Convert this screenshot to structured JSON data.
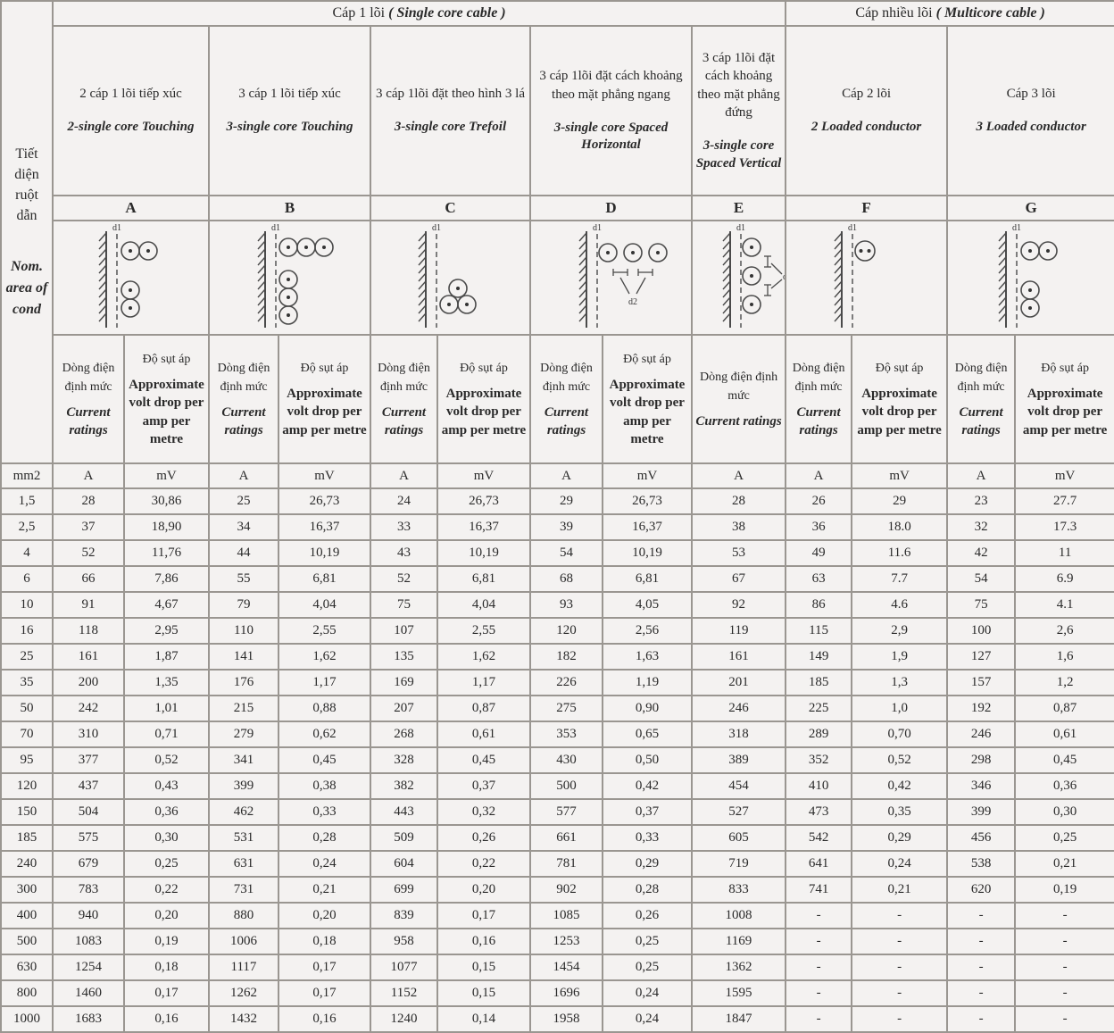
{
  "colors": {
    "cell_background": "#f4f2f1",
    "border": "#9a9691",
    "text": "#2a2a2a",
    "diagram_stroke": "#4a4a4a"
  },
  "table": {
    "corner": {
      "vi": "Tiết diện ruột dẫn",
      "en": "Nom. area of cond"
    },
    "sections": [
      {
        "title_vi": "Cáp 1 lõi",
        "title_en": "( Single core cable )",
        "span": 9
      },
      {
        "title_vi": "Cáp nhiều lõi",
        "title_en": "( Multicore cable )",
        "span": 4
      }
    ],
    "groups": [
      {
        "letter": "A",
        "desc_vi": "2 cáp 1 lõi tiếp xúc",
        "desc_en": "2-single core Touching",
        "cols": 2,
        "diagram": "2-single-touching"
      },
      {
        "letter": "B",
        "desc_vi": "3 cáp 1 lõi tiếp xúc",
        "desc_en": "3-single core Touching",
        "cols": 2,
        "diagram": "3-single-touching"
      },
      {
        "letter": "C",
        "desc_vi": "3 cáp 1lõi đặt theo hình 3 lá",
        "desc_en": "3-single core Trefoil",
        "cols": 2,
        "diagram": "trefoil"
      },
      {
        "letter": "D",
        "desc_vi": "3 cáp 1lõi đặt cách khoảng theo mặt phẳng ngang",
        "desc_en": "3-single core Spaced Horizontal",
        "cols": 2,
        "diagram": "spaced-horizontal"
      },
      {
        "letter": "E",
        "desc_vi": "3 cáp 1lõi đặt cách khoảng theo mặt phẳng đứng",
        "desc_en": "3-single core Spaced Vertical",
        "cols": 1,
        "diagram": "spaced-vertical"
      },
      {
        "letter": "F",
        "desc_vi": "Cáp 2 lõi",
        "desc_en": "2 Loaded conductor",
        "cols": 2,
        "diagram": "2-core-cable"
      },
      {
        "letter": "G",
        "desc_vi": "Cáp 3 lõi",
        "desc_en": "3 Loaded conductor",
        "cols": 2,
        "diagram": "3-core-cable"
      }
    ],
    "subheader": {
      "current_vi": "Dòng điện định mức",
      "current_en": "Current ratings",
      "volt_vi": "Độ sụt áp",
      "volt_en": "Approximate volt drop per amp per metre"
    },
    "units": {
      "size": "mm2",
      "current": "A",
      "volt": "mV"
    },
    "diagram_labels": {
      "d1": "d1",
      "d2": "d2"
    },
    "rows": [
      {
        "size": "1,5",
        "values": [
          "28",
          "30,86",
          "25",
          "26,73",
          "24",
          "26,73",
          "29",
          "26,73",
          "28",
          "26",
          "29",
          "23",
          "27.7"
        ]
      },
      {
        "size": "2,5",
        "values": [
          "37",
          "18,90",
          "34",
          "16,37",
          "33",
          "16,37",
          "39",
          "16,37",
          "38",
          "36",
          "18.0",
          "32",
          "17.3"
        ]
      },
      {
        "size": "4",
        "values": [
          "52",
          "11,76",
          "44",
          "10,19",
          "43",
          "10,19",
          "54",
          "10,19",
          "53",
          "49",
          "11.6",
          "42",
          "11"
        ]
      },
      {
        "size": "6",
        "values": [
          "66",
          "7,86",
          "55",
          "6,81",
          "52",
          "6,81",
          "68",
          "6,81",
          "67",
          "63",
          "7.7",
          "54",
          "6.9"
        ]
      },
      {
        "size": "10",
        "values": [
          "91",
          "4,67",
          "79",
          "4,04",
          "75",
          "4,04",
          "93",
          "4,05",
          "92",
          "86",
          "4.6",
          "75",
          "4.1"
        ]
      },
      {
        "size": "16",
        "values": [
          "118",
          "2,95",
          "110",
          "2,55",
          "107",
          "2,55",
          "120",
          "2,56",
          "119",
          "115",
          "2,9",
          "100",
          "2,6"
        ]
      },
      {
        "size": "25",
        "values": [
          "161",
          "1,87",
          "141",
          "1,62",
          "135",
          "1,62",
          "182",
          "1,63",
          "161",
          "149",
          "1,9",
          "127",
          "1,6"
        ]
      },
      {
        "size": "35",
        "values": [
          "200",
          "1,35",
          "176",
          "1,17",
          "169",
          "1,17",
          "226",
          "1,19",
          "201",
          "185",
          "1,3",
          "157",
          "1,2"
        ]
      },
      {
        "size": "50",
        "values": [
          "242",
          "1,01",
          "215",
          "0,88",
          "207",
          "0,87",
          "275",
          "0,90",
          "246",
          "225",
          "1,0",
          "192",
          "0,87"
        ]
      },
      {
        "size": "70",
        "values": [
          "310",
          "0,71",
          "279",
          "0,62",
          "268",
          "0,61",
          "353",
          "0,65",
          "318",
          "289",
          "0,70",
          "246",
          "0,61"
        ]
      },
      {
        "size": "95",
        "values": [
          "377",
          "0,52",
          "341",
          "0,45",
          "328",
          "0,45",
          "430",
          "0,50",
          "389",
          "352",
          "0,52",
          "298",
          "0,45"
        ]
      },
      {
        "size": "120",
        "values": [
          "437",
          "0,43",
          "399",
          "0,38",
          "382",
          "0,37",
          "500",
          "0,42",
          "454",
          "410",
          "0,42",
          "346",
          "0,36"
        ]
      },
      {
        "size": "150",
        "values": [
          "504",
          "0,36",
          "462",
          "0,33",
          "443",
          "0,32",
          "577",
          "0,37",
          "527",
          "473",
          "0,35",
          "399",
          "0,30"
        ]
      },
      {
        "size": "185",
        "values": [
          "575",
          "0,30",
          "531",
          "0,28",
          "509",
          "0,26",
          "661",
          "0,33",
          "605",
          "542",
          "0,29",
          "456",
          "0,25"
        ]
      },
      {
        "size": "240",
        "values": [
          "679",
          "0,25",
          "631",
          "0,24",
          "604",
          "0,22",
          "781",
          "0,29",
          "719",
          "641",
          "0,24",
          "538",
          "0,21"
        ]
      },
      {
        "size": "300",
        "values": [
          "783",
          "0,22",
          "731",
          "0,21",
          "699",
          "0,20",
          "902",
          "0,28",
          "833",
          "741",
          "0,21",
          "620",
          "0,19"
        ]
      },
      {
        "size": "400",
        "values": [
          "940",
          "0,20",
          "880",
          "0,20",
          "839",
          "0,17",
          "1085",
          "0,26",
          "1008",
          "-",
          "-",
          "-",
          "-"
        ]
      },
      {
        "size": "500",
        "values": [
          "1083",
          "0,19",
          "1006",
          "0,18",
          "958",
          "0,16",
          "1253",
          "0,25",
          "1169",
          "-",
          "-",
          "-",
          "-"
        ]
      },
      {
        "size": "630",
        "values": [
          "1254",
          "0,18",
          "1117",
          "0,17",
          "1077",
          "0,15",
          "1454",
          "0,25",
          "1362",
          "-",
          "-",
          "-",
          "-"
        ]
      },
      {
        "size": "800",
        "values": [
          "1460",
          "0,17",
          "1262",
          "0,17",
          "1152",
          "0,15",
          "1696",
          "0,24",
          "1595",
          "-",
          "-",
          "-",
          "-"
        ]
      },
      {
        "size": "1000",
        "values": [
          "1683",
          "0,16",
          "1432",
          "0,16",
          "1240",
          "0,14",
          "1958",
          "0,24",
          "1847",
          "-",
          "-",
          "-",
          "-"
        ]
      }
    ]
  }
}
